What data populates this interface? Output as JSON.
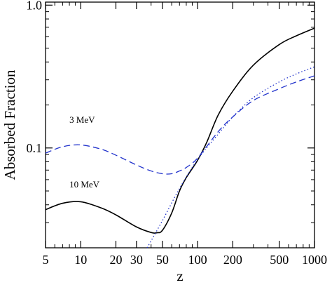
{
  "chart_data": {
    "type": "line",
    "xlabel": "z",
    "ylabel": "Absorbed Fraction",
    "x_scale": "log",
    "y_scale": "log",
    "xlim": [
      5,
      1000
    ],
    "ylim": [
      0.02,
      1.05
    ],
    "x_ticks": [
      5,
      10,
      20,
      30,
      50,
      100,
      200,
      500,
      1000
    ],
    "x_tick_labels": [
      "5",
      "10",
      "20",
      "30",
      "50",
      "100",
      "200",
      "500",
      "1000"
    ],
    "y_ticks": [
      0.1,
      1.0
    ],
    "y_tick_labels": [
      "0.1",
      "1.0"
    ],
    "grid": false,
    "annotations": [
      {
        "text": "3 MeV",
        "x": 8,
        "y": 0.15
      },
      {
        "text": "10 MeV",
        "x": 8,
        "y": 0.053
      }
    ],
    "series": [
      {
        "style": "solid",
        "color": "#000000",
        "x": [
          5,
          7,
          10,
          15,
          20,
          30,
          40,
          45,
          50,
          60,
          70,
          80,
          100,
          120,
          150,
          200,
          300,
          500,
          700,
          1000
        ],
        "y": [
          0.037,
          0.041,
          0.042,
          0.038,
          0.034,
          0.028,
          0.0256,
          0.0255,
          0.0265,
          0.035,
          0.05,
          0.062,
          0.082,
          0.11,
          0.17,
          0.25,
          0.38,
          0.53,
          0.61,
          0.69
        ]
      },
      {
        "style": "dashed",
        "color": "#2233cc",
        "x": [
          5,
          7,
          10,
          15,
          20,
          30,
          40,
          50,
          60,
          70,
          80,
          100,
          150,
          200,
          300,
          500,
          700,
          1000
        ],
        "y": [
          0.092,
          0.102,
          0.105,
          0.098,
          0.089,
          0.076,
          0.069,
          0.066,
          0.066,
          0.069,
          0.073,
          0.085,
          0.13,
          0.165,
          0.215,
          0.26,
          0.29,
          0.32
        ]
      },
      {
        "style": "dotted",
        "color": "#2233cc",
        "x": [
          37,
          50,
          70,
          100,
          150,
          200,
          300,
          500,
          700,
          1000
        ],
        "y": [
          0.02,
          0.031,
          0.052,
          0.083,
          0.125,
          0.165,
          0.225,
          0.29,
          0.33,
          0.37
        ]
      }
    ]
  }
}
